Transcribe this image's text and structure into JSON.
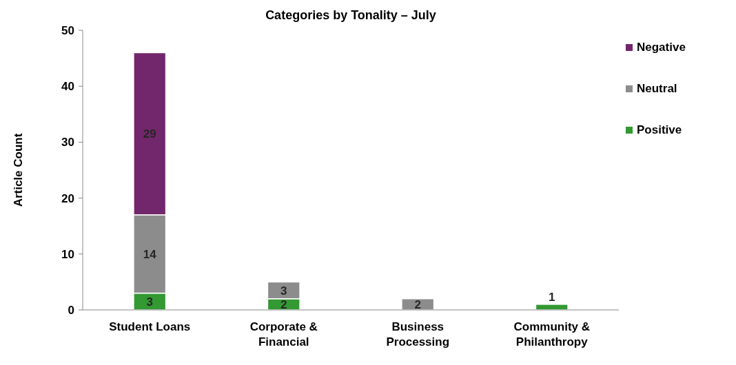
{
  "chart_data": {
    "type": "bar",
    "title": "Categories by Tonality – July",
    "ylabel": "Article Count",
    "categories": [
      "Student Loans",
      "Corporate & Financial",
      "Business Processing",
      "Community & Philanthropy"
    ],
    "stacked": true,
    "data_labels": true,
    "legend": "top right",
    "grid": false,
    "ylim": [
      0,
      50
    ],
    "yticks": [
      0,
      10,
      20,
      30,
      40,
      50
    ],
    "series": [
      {
        "name": "Positive",
        "color": "#339933",
        "values": [
          3,
          2,
          null,
          1
        ]
      },
      {
        "name": "Neutral",
        "color": "#8c8c8c",
        "values": [
          14,
          3,
          2,
          null
        ]
      },
      {
        "name": "Negative",
        "color": "#72266b",
        "values": [
          29,
          null,
          null,
          null
        ]
      }
    ]
  }
}
